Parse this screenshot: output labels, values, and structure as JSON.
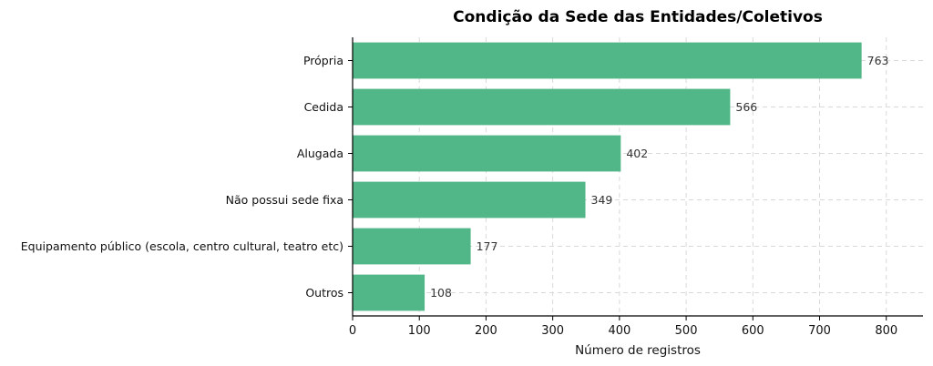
{
  "chart_data": {
    "type": "bar",
    "orientation": "horizontal",
    "title": "Condição da Sede das Entidades/Coletivos",
    "xlabel": "Número de registros",
    "ylabel": "",
    "categories": [
      "Própria",
      "Cedida",
      "Alugada",
      "Não possui sede fixa",
      "Equipamento público (escola, centro cultural, teatro etc)",
      "Outros"
    ],
    "values": [
      763,
      566,
      402,
      349,
      177,
      108
    ],
    "xlim": [
      0,
      855
    ],
    "xticks": [
      0,
      100,
      200,
      300,
      400,
      500,
      600,
      700,
      800
    ],
    "grid": true,
    "legend": "none",
    "bar_color": "#52b788"
  }
}
